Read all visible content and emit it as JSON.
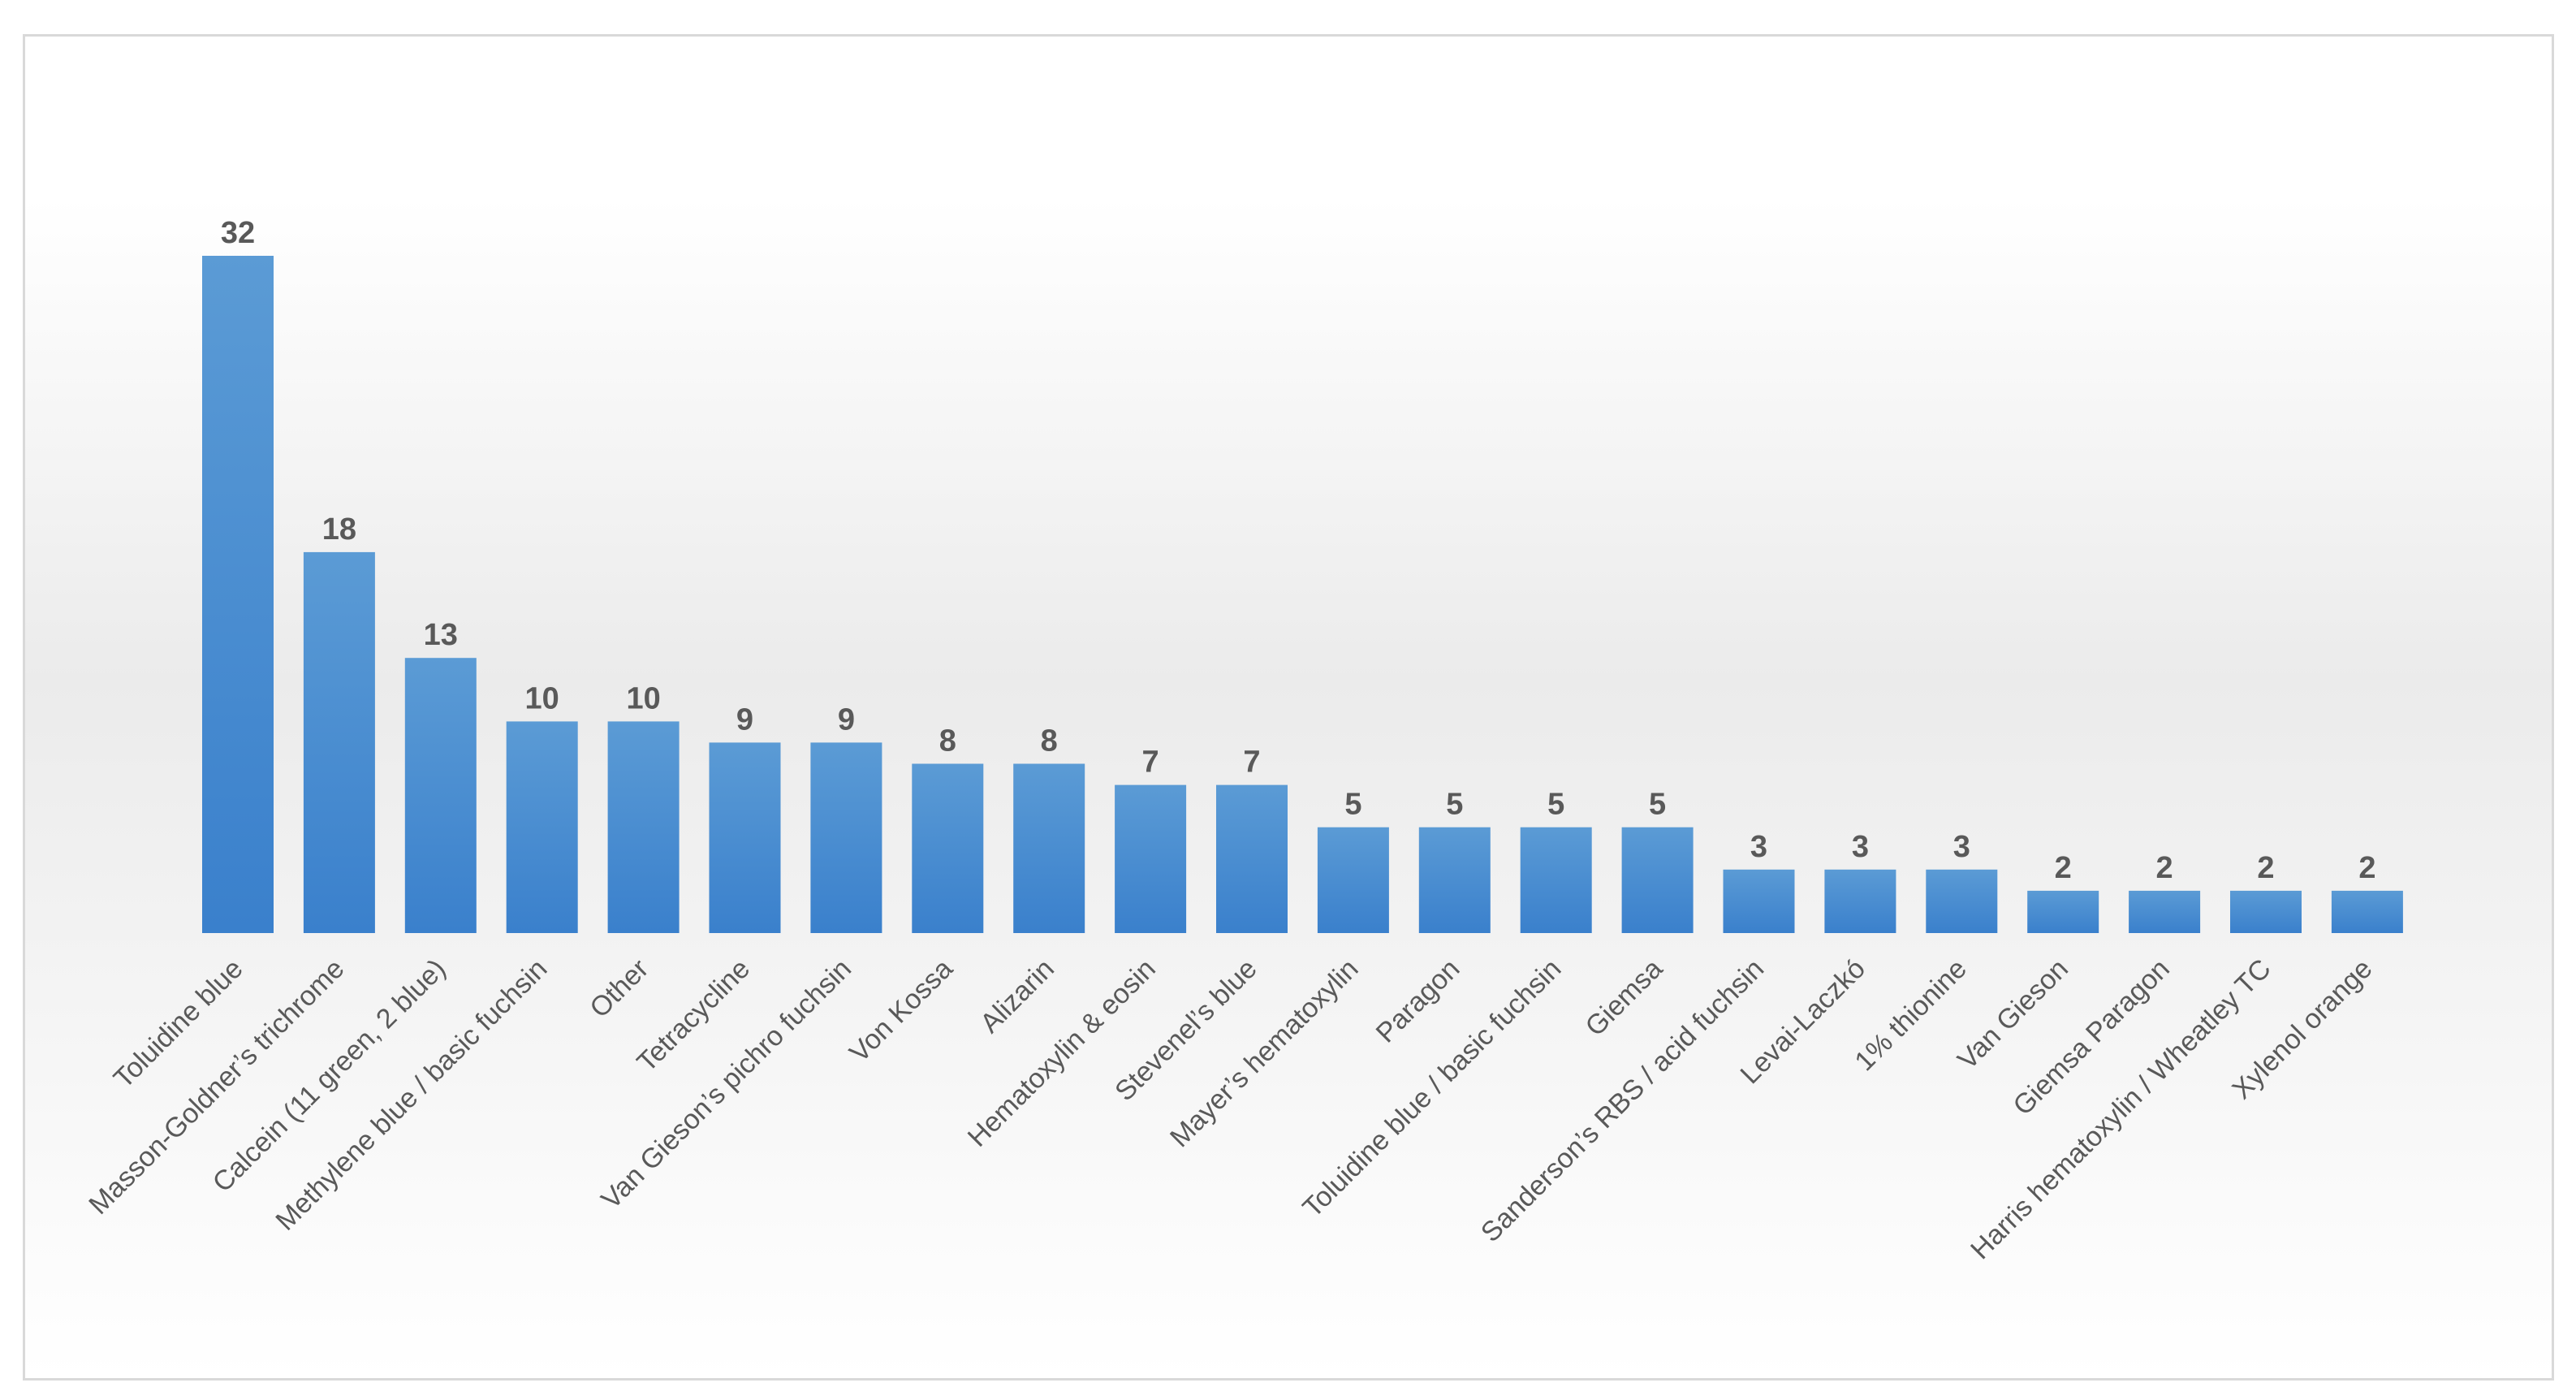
{
  "chart_data": {
    "type": "bar",
    "title": "",
    "xlabel": "",
    "ylabel": "",
    "ylim": [
      0,
      32
    ],
    "grid": false,
    "legend": "none",
    "bar_color": "#4a90d9",
    "categories": [
      "Toluidine blue",
      "Masson-Goldner’s trichrome",
      "Calcein (11 green, 2 blue)",
      "Methylene blue / basic fuchsin",
      "Other",
      "Tetracycline",
      "Van Gieson’s pichro fuchsin",
      "Von Kossa",
      "Alizarin",
      "Hematoxylin & eosin",
      "Stevenel’s blue",
      "Mayer’s hematoxylin",
      "Paragon",
      "Toluidine blue / basic fuchsin",
      "Giemsa",
      "Sanderson’s RBS / acid fuchsin",
      "Levai-Laczkó",
      "1% thionine",
      "Van Gieson",
      "Giemsa Paragon",
      "Harris hematoxylin / Wheatley TC",
      "Xylenol orange"
    ],
    "values": [
      32,
      18,
      13,
      10,
      10,
      9,
      9,
      8,
      8,
      7,
      7,
      5,
      5,
      5,
      5,
      3,
      3,
      3,
      2,
      2,
      2,
      2
    ]
  }
}
